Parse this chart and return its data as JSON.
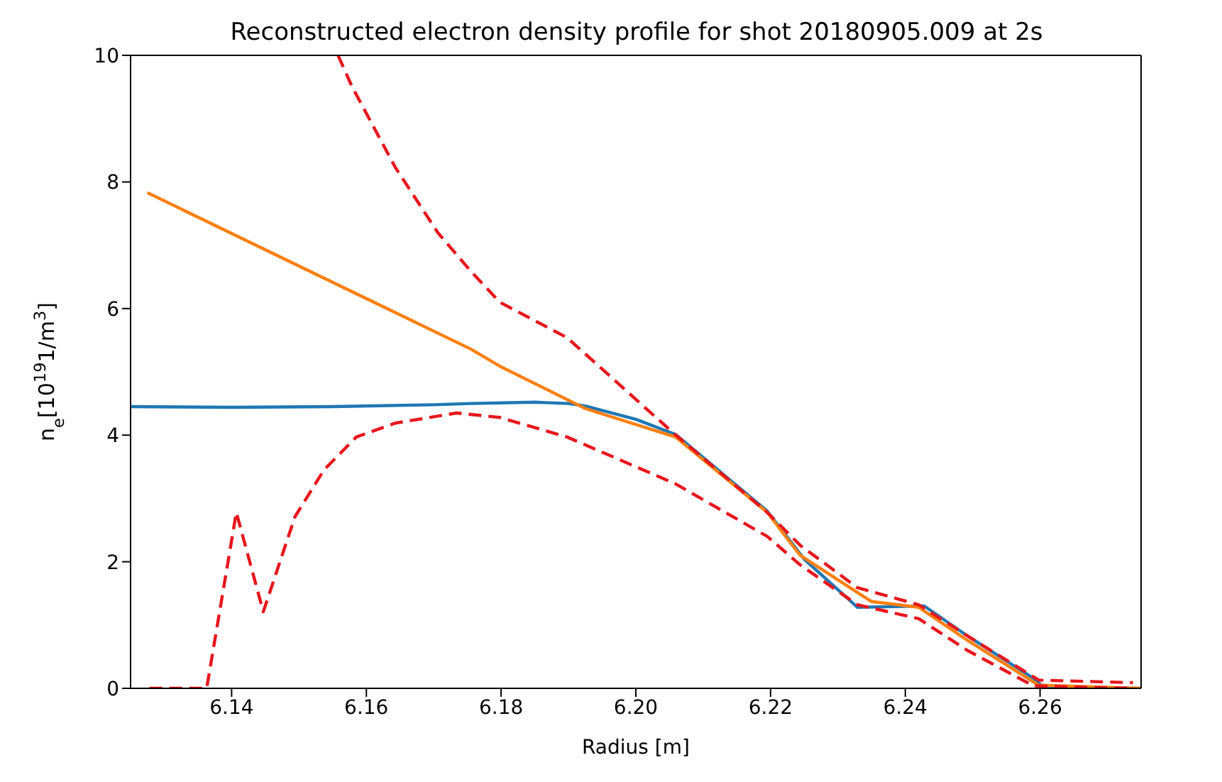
{
  "chart_data": {
    "type": "line",
    "title": "Reconstructed electron density profile for shot 20180905.009 at 2s",
    "xlabel": "Radius [m]",
    "ylabel": "n$_{e}$[10$^{19}$1/m$^{3}$]",
    "xlim": [
      6.125,
      6.275
    ],
    "xticks": [
      6.14,
      6.16,
      6.18,
      {
        "value": 6.2,
        "label": "6.20"
      },
      6.22,
      6.24,
      6.26
    ],
    "ylim": [
      0,
      10
    ],
    "yticks": [
      0,
      2,
      4,
      6,
      8,
      10
    ],
    "grid": false,
    "legend": false,
    "marker": "none",
    "series": [
      {
        "color": "#1f77b4",
        "line_style": "solid",
        "x": [
          6.125,
          6.14,
          6.155,
          6.17,
          6.1755,
          6.185,
          6.19,
          6.1925,
          6.2,
          6.2059,
          6.2195,
          6.225,
          6.2329,
          6.2428,
          6.2492,
          6.259,
          6.2605,
          6.275
        ],
        "values": [
          4.45,
          4.44,
          4.45,
          4.48,
          4.5,
          4.52,
          4.5,
          4.46,
          4.25,
          4.01,
          2.8,
          2.04,
          1.28,
          1.3,
          0.83,
          0.16,
          0.02,
          0.0
        ]
      },
      {
        "color": "#ff7f0e",
        "line_style": "solid",
        "x": [
          6.1275,
          6.1755,
          6.1798,
          6.1925,
          6.2059,
          6.2195,
          6.2244,
          6.235,
          6.242,
          6.2492,
          6.2598,
          6.275
        ],
        "values": [
          7.83,
          5.36,
          5.09,
          4.42,
          3.97,
          2.78,
          2.1,
          1.37,
          1.28,
          0.76,
          0.05,
          0.0
        ]
      },
      {
        "color": "#e8161c",
        "line_style": "dashed",
        "x": [
          6.1558,
          6.1579,
          6.1643,
          6.1706,
          6.1755,
          6.1798,
          6.1898,
          6.2053,
          6.2195,
          6.2244,
          6.2329,
          6.242,
          6.2492,
          6.2598,
          6.2738
        ],
        "values": [
          10,
          9.5,
          8.23,
          7.2,
          6.59,
          6.1,
          5.54,
          4.06,
          2.78,
          2.26,
          1.59,
          1.32,
          0.83,
          0.13,
          0.09
        ]
      },
      {
        "color": "#e8161c",
        "line_style": "dashed",
        "x": [
          6.1278,
          6.1363,
          6.1407,
          6.1447,
          6.1494,
          6.1537,
          6.1585,
          6.1643,
          6.1734,
          6.1798,
          6.1898,
          6.2059,
          6.2195,
          6.2244,
          6.2329,
          6.242,
          6.2492,
          6.259,
          6.2738
        ],
        "values": [
          0,
          0,
          2.78,
          1.21,
          2.71,
          3.45,
          3.97,
          4.19,
          4.35,
          4.28,
          3.97,
          3.23,
          2.4,
          1.95,
          1.32,
          1.1,
          0.6,
          0.04,
          0.0
        ]
      }
    ]
  }
}
